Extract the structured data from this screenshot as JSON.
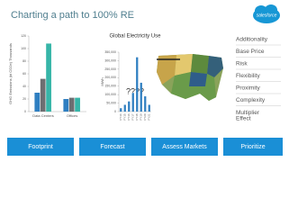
{
  "title": "Charting  a path to 100% RE",
  "logo": "salesforce",
  "chart_data": [
    {
      "type": "grouped-bar",
      "ylabel": "GHG Emissions (kt CO2e) Thousands",
      "categories": [
        "Data Centers",
        "Offices"
      ],
      "series": [
        {
          "color": "#2f7fc1",
          "values": [
            30,
            20
          ]
        },
        {
          "color": "#6d6e71",
          "values": [
            52,
            22
          ]
        },
        {
          "color": "#36b5a8",
          "values": [
            108,
            22
          ]
        }
      ],
      "ylim": [
        0,
        120
      ],
      "yticks": [
        0,
        20,
        40,
        60,
        80,
        100,
        120
      ]
    },
    {
      "type": "bar",
      "title": "Global Electricity Use",
      "ylabel": "MWh",
      "color": "#2f7fc1",
      "annotation": "????",
      "categories": [
        "FY14",
        "FY15",
        "FY16",
        "FY17",
        "FY18",
        "FY19",
        "FY20",
        "FY21"
      ],
      "values": [
        20000,
        40000,
        60000,
        110000,
        320000,
        170000,
        90000,
        40000
      ],
      "ylim": [
        0,
        350000
      ],
      "yticks": [
        0,
        {
          "value": 50000,
          "label": "50,000"
        },
        {
          "value": 100000,
          "label": "100,000"
        },
        {
          "value": 150000,
          "label": "150,000"
        },
        {
          "value": 200000,
          "label": "200,000"
        },
        {
          "value": 250000,
          "label": "250,000"
        },
        {
          "value": 300000,
          "label": "300,000"
        },
        {
          "value": 350000,
          "label": "350,000"
        }
      ]
    }
  ],
  "criteria": [
    "Additionality",
    "Base Price",
    "Risk",
    "Flexibility",
    "Proximity",
    "Complexity",
    "Multiplier Effect"
  ],
  "buttons": [
    "Footprint",
    "Forecast",
    "Assess Markets",
    "Prioritize"
  ]
}
